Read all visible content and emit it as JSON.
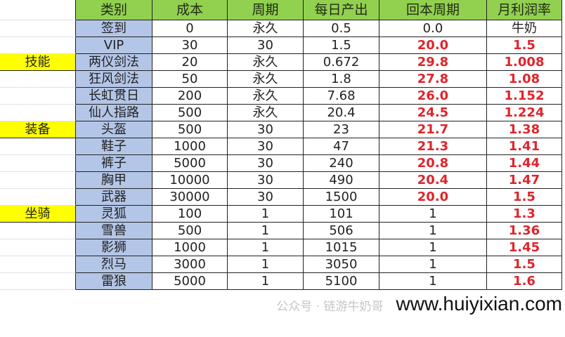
{
  "headers": [
    "类别",
    "成本",
    "周期",
    "每日产出",
    "回本周期",
    "月利润率"
  ],
  "rows": [
    {
      "group": "",
      "name": "签到",
      "cost": "0",
      "period": "永久",
      "daily": "0.5",
      "payback": "0.0",
      "monthly": "牛奶",
      "red": false
    },
    {
      "group": "",
      "name": "VIP",
      "cost": "30",
      "period": "30",
      "daily": "1.5",
      "payback": "20.0",
      "monthly": "1.5",
      "red": true
    },
    {
      "group": "技能",
      "name": "两仪剑法",
      "cost": "20",
      "period": "永久",
      "daily": "0.672",
      "payback": "29.8",
      "monthly": "1.008",
      "red": true
    },
    {
      "group": "",
      "name": "狂风剑法",
      "cost": "50",
      "period": "永久",
      "daily": "1.8",
      "payback": "27.8",
      "monthly": "1.08",
      "red": true
    },
    {
      "group": "",
      "name": "长虹贯日",
      "cost": "200",
      "period": "永久",
      "daily": "7.68",
      "payback": "26.0",
      "monthly": "1.152",
      "red": true
    },
    {
      "group": "",
      "name": "仙人指路",
      "cost": "500",
      "period": "永久",
      "daily": "20.4",
      "payback": "24.5",
      "monthly": "1.224",
      "red": true
    },
    {
      "group": "装备",
      "name": "头盔",
      "cost": "500",
      "period": "30",
      "daily": "23",
      "payback": "21.7",
      "monthly": "1.38",
      "red": true
    },
    {
      "group": "",
      "name": "鞋子",
      "cost": "1000",
      "period": "30",
      "daily": "47",
      "payback": "21.3",
      "monthly": "1.41",
      "red": true
    },
    {
      "group": "",
      "name": "裤子",
      "cost": "5000",
      "period": "30",
      "daily": "240",
      "payback": "20.8",
      "monthly": "1.44",
      "red": true
    },
    {
      "group": "",
      "name": "胸甲",
      "cost": "10000",
      "period": "30",
      "daily": "490",
      "payback": "20.4",
      "monthly": "1.47",
      "red": true
    },
    {
      "group": "",
      "name": "武器",
      "cost": "30000",
      "period": "30",
      "daily": "1500",
      "payback": "20.0",
      "monthly": "1.5",
      "red": true
    },
    {
      "group": "坐骑",
      "name": "灵狐",
      "cost": "100",
      "period": "1",
      "daily": "101",
      "payback": "1",
      "monthly": "1.3",
      "red": false
    },
    {
      "group": "",
      "name": "雪兽",
      "cost": "500",
      "period": "1",
      "daily": "506",
      "payback": "1",
      "monthly": "1.36",
      "red": false
    },
    {
      "group": "",
      "name": "影狮",
      "cost": "1000",
      "period": "1",
      "daily": "1015",
      "payback": "1",
      "monthly": "1.45",
      "red": false
    },
    {
      "group": "",
      "name": "烈马",
      "cost": "3000",
      "period": "1",
      "daily": "3050",
      "payback": "1",
      "monthly": "1.5",
      "red": false
    },
    {
      "group": "",
      "name": "雷狼",
      "cost": "5000",
      "period": "1",
      "daily": "5100",
      "payback": "1",
      "monthly": "1.6",
      "red": false
    }
  ],
  "watermark": {
    "account": "公众号 · 链游牛奶哥",
    "site": "www.huiyixian.com"
  },
  "colors": {
    "header": "#92d050",
    "category_col": "#b4c6e7",
    "group_label": "#ffff00",
    "highlight_text": "#e0242b"
  }
}
